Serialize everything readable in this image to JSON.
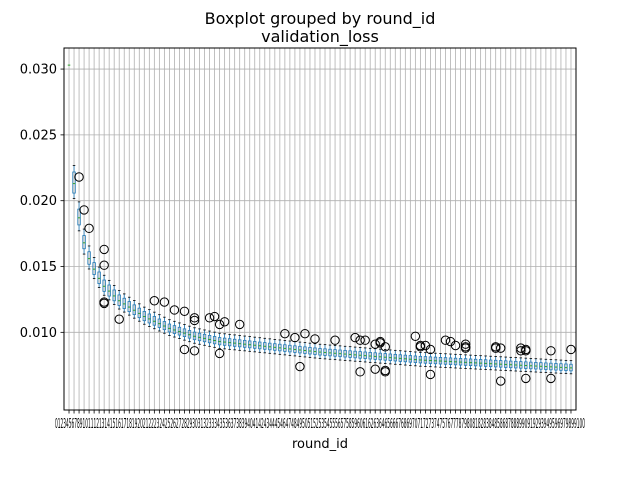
{
  "chart_data": {
    "type": "boxplot",
    "suptitle": "Boxplot grouped by round_id",
    "title": "validation_loss",
    "xlabel": "round_id",
    "ylabel": "",
    "ylim": [
      0.0041,
      0.0316
    ],
    "y_ticks": [
      0.01,
      0.015,
      0.02,
      0.025,
      0.03
    ],
    "y_tick_labels": [
      "0.010",
      "0.015",
      "0.020",
      "0.025",
      "0.030"
    ],
    "x_tick_labels_text": "0123456789101112131415161718192021222324252627282930313233343536373839404142434445464748495051525354555657585960616263646566676869707172737475767778798081828384858687888990919293949596979899100",
    "grid": true,
    "round_ids_range": [
      0,
      100
    ],
    "box_color": "#1f77b4",
    "median_color": "#2ca02c",
    "flier_color": "#000000",
    "medians_keypoints": [
      [
        0,
        0.0303
      ],
      [
        1,
        0.0213
      ],
      [
        2,
        0.0187
      ],
      [
        3,
        0.0168
      ],
      [
        4,
        0.0156
      ],
      [
        5,
        0.0148
      ],
      [
        6,
        0.0141
      ],
      [
        7,
        0.0135
      ],
      [
        10,
        0.0124
      ],
      [
        15,
        0.0112
      ],
      [
        20,
        0.0103
      ],
      [
        25,
        0.0097
      ],
      [
        30,
        0.0093
      ],
      [
        40,
        0.0089
      ],
      [
        50,
        0.0085
      ],
      [
        60,
        0.0082
      ],
      [
        70,
        0.0079
      ],
      [
        80,
        0.0077
      ],
      [
        90,
        0.0075
      ],
      [
        100,
        0.0073
      ]
    ],
    "iqr_keypoints": [
      [
        0,
        0.0
      ],
      [
        1,
        0.0016
      ],
      [
        2,
        0.0012
      ],
      [
        3,
        0.001
      ],
      [
        5,
        0.0009
      ],
      [
        10,
        0.0008
      ],
      [
        20,
        0.0006
      ],
      [
        40,
        0.0005
      ],
      [
        100,
        0.0005
      ]
    ],
    "whisker_keypoints": [
      [
        0,
        0.0
      ],
      [
        1,
        0.0025
      ],
      [
        2,
        0.0022
      ],
      [
        3,
        0.0019
      ],
      [
        5,
        0.0016
      ],
      [
        10,
        0.0014
      ],
      [
        20,
        0.0012
      ],
      [
        40,
        0.0011
      ],
      [
        100,
        0.001
      ]
    ],
    "outliers": [
      [
        2,
        0.0218
      ],
      [
        3,
        0.0193
      ],
      [
        4,
        0.0179
      ],
      [
        7,
        0.0163
      ],
      [
        7,
        0.0151
      ],
      [
        7,
        0.0123
      ],
      [
        7,
        0.0122
      ],
      [
        10,
        0.011
      ],
      [
        17,
        0.0124
      ],
      [
        19,
        0.0123
      ],
      [
        21,
        0.0117
      ],
      [
        23,
        0.0116
      ],
      [
        23,
        0.0087
      ],
      [
        25,
        0.0111
      ],
      [
        25,
        0.0109
      ],
      [
        25,
        0.0086
      ],
      [
        28,
        0.0111
      ],
      [
        29,
        0.0112
      ],
      [
        30,
        0.0106
      ],
      [
        30,
        0.0084
      ],
      [
        31,
        0.0108
      ],
      [
        34,
        0.0106
      ],
      [
        43,
        0.0099
      ],
      [
        45,
        0.0096
      ],
      [
        46,
        0.0074
      ],
      [
        47,
        0.0099
      ],
      [
        49,
        0.0095
      ],
      [
        53,
        0.0094
      ],
      [
        57,
        0.0096
      ],
      [
        58,
        0.0094
      ],
      [
        58,
        0.007
      ],
      [
        59,
        0.0094
      ],
      [
        61,
        0.0091
      ],
      [
        61,
        0.0072
      ],
      [
        62,
        0.0092
      ],
      [
        62,
        0.0093
      ],
      [
        63,
        0.0089
      ],
      [
        63,
        0.0071
      ],
      [
        63,
        0.007
      ],
      [
        69,
        0.0097
      ],
      [
        70,
        0.009
      ],
      [
        70,
        0.0089
      ],
      [
        71,
        0.009
      ],
      [
        72,
        0.0087
      ],
      [
        72,
        0.0068
      ],
      [
        75,
        0.0094
      ],
      [
        76,
        0.0093
      ],
      [
        77,
        0.009
      ],
      [
        79,
        0.0091
      ],
      [
        79,
        0.0089
      ],
      [
        79,
        0.0088
      ],
      [
        85,
        0.0089
      ],
      [
        85,
        0.0088
      ],
      [
        86,
        0.0088
      ],
      [
        86,
        0.0063
      ],
      [
        90,
        0.0088
      ],
      [
        90,
        0.0086
      ],
      [
        91,
        0.0087
      ],
      [
        91,
        0.0086
      ],
      [
        91,
        0.0065
      ],
      [
        96,
        0.0086
      ],
      [
        96,
        0.0065
      ],
      [
        100,
        0.0087
      ]
    ]
  }
}
